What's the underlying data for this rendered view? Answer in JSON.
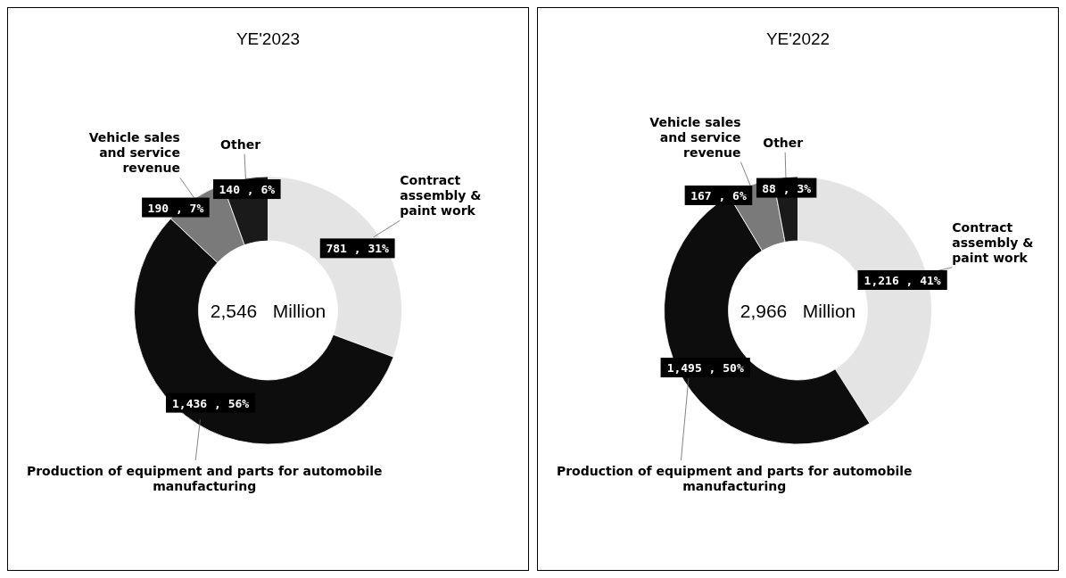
{
  "chart_data": [
    {
      "type": "donut",
      "title": "YE'2023",
      "categories": [
        "Contract assembly & paint work",
        "Production of equipment and parts for automobile manufacturing",
        "Vehicle sales and service revenue",
        "Other"
      ],
      "values": [
        781,
        1436,
        190,
        140
      ],
      "colors": [
        "#e4e4e4",
        "#0d0d0d",
        "#7a7a7a",
        "#1a1a1a"
      ],
      "value_labels": [
        "781 , 31%",
        "1,436 , 56%",
        "190 , 7%",
        "140 , 6%"
      ],
      "annotations": [
        "2,546   Million"
      ]
    },
    {
      "type": "donut",
      "title": "YE'2022",
      "categories": [
        "Contract assembly & paint work",
        "Production of equipment and parts for automobile manufacturing",
        "Vehicle sales and service revenue",
        "Other"
      ],
      "values": [
        1216,
        1495,
        167,
        88
      ],
      "colors": [
        "#e4e4e4",
        "#0d0d0d",
        "#7a7a7a",
        "#1a1a1a"
      ],
      "value_labels": [
        "1,216 , 41%",
        "1,495 , 50%",
        "167 , 6%",
        "88 , 3%"
      ],
      "annotations": [
        "2,966   Million"
      ]
    }
  ]
}
